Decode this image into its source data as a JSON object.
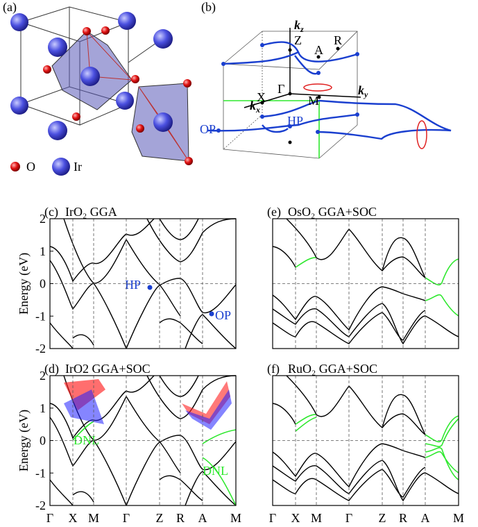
{
  "panels": {
    "a": {
      "label": "(a)",
      "legend": [
        "O",
        "Ir"
      ]
    },
    "b": {
      "label": "(b)",
      "points": [
        "Z",
        "A",
        "R",
        "Γ",
        "X",
        "M",
        "HP",
        "OP"
      ],
      "axes": [
        {
          "base": "k",
          "sub": "z"
        },
        {
          "base": "k",
          "sub": "x"
        },
        {
          "base": "k",
          "sub": "y"
        }
      ]
    },
    "c": {
      "label": "(c)",
      "title": "IrO₂ GGA",
      "ylabel": "Energy (eV)",
      "ylim": [
        -2,
        2
      ],
      "yticks": [
        2,
        1,
        0,
        -1,
        -2
      ],
      "annotations": [
        "HP",
        "OP"
      ]
    },
    "d": {
      "label": "(d)",
      "title": "IrO2 GGA+SOC",
      "ylabel": "Energy (eV)",
      "ylim": [
        -2,
        2
      ],
      "yticks": [
        2,
        1,
        0,
        -1,
        -2
      ],
      "annotations": [
        "DNL",
        "DNL"
      ],
      "xticks": [
        "Γ",
        "X",
        "M",
        "Γ",
        "Z",
        "R",
        "A",
        "M"
      ]
    },
    "e": {
      "label": "(e)",
      "title": "OsO₂ GGA+SOC",
      "ylim": [
        -2,
        2
      ]
    },
    "f": {
      "label": "(f)",
      "title": "RuO₂ GGA+SOC",
      "ylim": [
        -2,
        2
      ],
      "xticks": [
        "Γ",
        "X",
        "M",
        "Γ",
        "Z",
        "R",
        "A",
        "M"
      ]
    }
  }
}
